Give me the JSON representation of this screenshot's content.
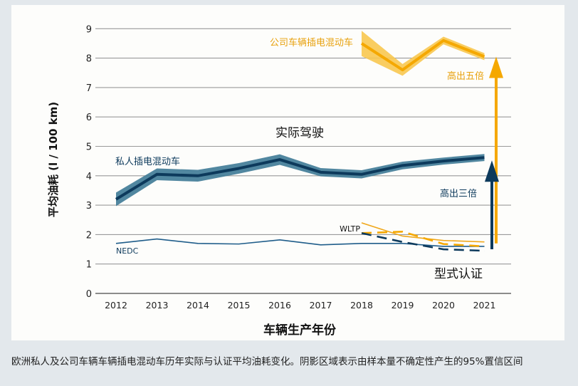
{
  "chart_data": {
    "type": "line",
    "title": "",
    "xlabel": "车辆生产年份",
    "ylabel": "平均油耗 (l / 100 km)",
    "ylim": [
      0,
      9
    ],
    "yticks": [
      0,
      1,
      2,
      3,
      4,
      5,
      6,
      7,
      8,
      9
    ],
    "x": [
      2012,
      2013,
      2014,
      2015,
      2016,
      2017,
      2018,
      2019,
      2020,
      2021
    ],
    "grid": true,
    "series": [
      {
        "name": "私人插电混动车 (实际驾驶)",
        "style": "solid-thick-band",
        "color": "#0d3a5c",
        "band_color": "#3e7a96",
        "x": [
          2012,
          2013,
          2014,
          2015,
          2016,
          2017,
          2018,
          2019,
          2020,
          2021
        ],
        "values": [
          3.2,
          4.05,
          4.0,
          4.25,
          4.55,
          4.12,
          4.05,
          4.35,
          4.5,
          4.62
        ],
        "ci_halfwidth": [
          0.15,
          0.12,
          0.12,
          0.1,
          0.1,
          0.06,
          0.06,
          0.05,
          0.04,
          0.04
        ]
      },
      {
        "name": "公司车辆插电混动车 (实际驾驶)",
        "style": "solid-thick-band",
        "color": "#f5a800",
        "band_color": "#f8c850",
        "x": [
          2018,
          2019,
          2020,
          2021
        ],
        "values": [
          8.5,
          7.6,
          8.6,
          8.05
        ],
        "ci_halfwidth": [
          0.35,
          0.12,
          0.05,
          0.04
        ]
      },
      {
        "name": "NEDC",
        "style": "solid-thin",
        "color": "#1f5d8a",
        "x": [
          2012,
          2013,
          2014,
          2015,
          2016,
          2017,
          2018,
          2019,
          2020,
          2021
        ],
        "values": [
          1.7,
          1.85,
          1.7,
          1.68,
          1.82,
          1.65,
          1.7,
          1.7,
          1.6,
          1.6
        ]
      },
      {
        "name": "WLTP 公司车辆",
        "style": "solid-thin",
        "color": "#f0a81c",
        "x": [
          2018,
          2019,
          2020,
          2021
        ],
        "values": [
          2.4,
          1.95,
          1.8,
          1.75
        ]
      },
      {
        "name": "WLTP 公司车辆 (虚线)",
        "style": "dashed",
        "color": "#f5a800",
        "x": [
          2018,
          2019,
          2020,
          2021
        ],
        "values": [
          2.05,
          2.1,
          1.68,
          1.6
        ]
      },
      {
        "name": "WLTP 私人",
        "style": "dashed",
        "color": "#0d3a5c",
        "x": [
          2018,
          2019,
          2020,
          2021
        ],
        "values": [
          2.05,
          1.75,
          1.5,
          1.45
        ]
      }
    ],
    "arrows": [
      {
        "name": "company-arrow",
        "color": "#f5a800",
        "from_value": 1.7,
        "to_value": 8.05,
        "label": "高出五倍"
      },
      {
        "name": "private-arrow",
        "color": "#0d3a5c",
        "from_value": 1.5,
        "to_value": 4.62,
        "label": "高出三倍"
      }
    ],
    "annotations": {
      "real_driving": "实际驾驶",
      "type_approval": "型式认证",
      "private_label": "私人插电混动车",
      "company_label": "公司车辆插电混动车",
      "nedc_label": "NEDC",
      "wltp_label": "WLTP"
    }
  },
  "caption": "欧洲私人及公司车辆车辆插电混动车历年实际与认证平均油耗变化。阴影区域表示由样本量不确定性产生的95%置信区间",
  "colors": {
    "navy": "#0d3a5c",
    "gold": "#f5a800",
    "grid": "#9a9a9a"
  }
}
